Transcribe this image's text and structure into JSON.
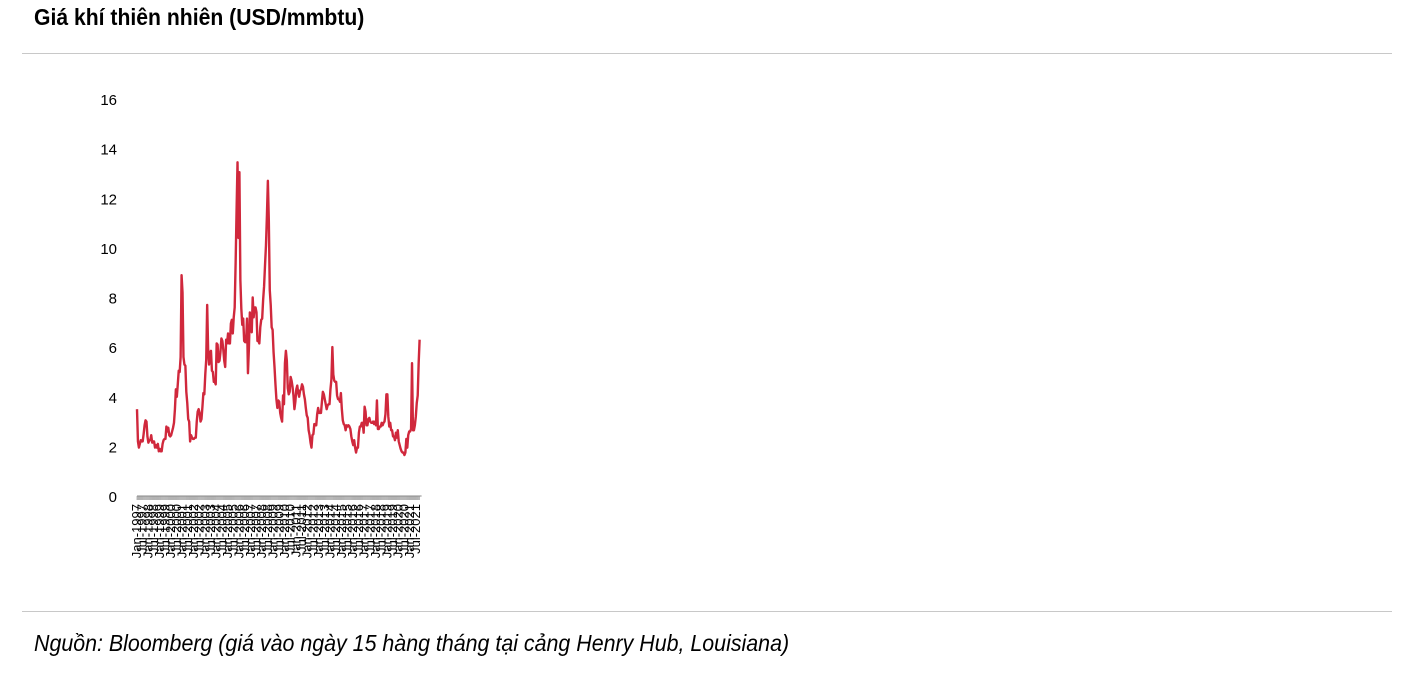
{
  "header": {
    "title": "Giá khí thiên nhiên (USD/mmbtu)"
  },
  "footer": {
    "source": "Nguồn: Bloomberg (giá vào ngày 15 hàng tháng tại cảng Henry Hub, Louisiana)"
  },
  "colors": {
    "line": "#d0283c",
    "axis": "#8a8a8a",
    "rule": "#c8c8c8"
  },
  "chart_data": {
    "type": "line",
    "title": "Giá khí thiên nhiên (USD/mmbtu)",
    "xlabel": "",
    "ylabel": "",
    "ylim": [
      0,
      16
    ],
    "yticks": [
      0,
      2,
      4,
      6,
      8,
      10,
      12,
      14,
      16
    ],
    "x_start": "Jan-1997",
    "frequency": "monthly",
    "xtick_labels": [
      "Jan-1997",
      "Jul-1997",
      "Jan-1998",
      "Jul-1998",
      "Jan-1999",
      "Jul-1999",
      "Jan-2000",
      "Jul-2000",
      "Jan-2001",
      "Jul-2001",
      "Jan-2002",
      "Jul-2002",
      "Jan-2003",
      "Jul-2003",
      "Jan-2004",
      "Jul-2004",
      "Jan-2005",
      "Jul-2005",
      "Jan-2006",
      "Jul-2006",
      "Jan-2007",
      "Jul-2007",
      "Jan-2008",
      "Jul-2008",
      "Jan-2009",
      "Jul-2009",
      "Jan-2010",
      "Jul-2010",
      "Jan-2011",
      "Jul-2011",
      "Jan-2012",
      "Jul-2012",
      "Jan-2013",
      "Jul-2013",
      "Jan-2014",
      "Jul-2014",
      "Jan-2015",
      "Jul-2015",
      "Jan-2016",
      "Jul-2016",
      "Jan-2017",
      "Jul-2017",
      "Jan-2018",
      "Jul-2018",
      "Jan-2019",
      "Jul-2019",
      "Jan-2020",
      "Jul-2020",
      "Jan-2021",
      "Jul-2021"
    ],
    "series": [
      {
        "name": "Henry Hub",
        "values": [
          3.5,
          2.2,
          1.95,
          2.1,
          2.25,
          2.2,
          2.2,
          2.5,
          2.85,
          3.05,
          3.0,
          2.4,
          2.15,
          2.25,
          2.25,
          2.45,
          2.15,
          2.2,
          2.2,
          1.95,
          2.05,
          1.95,
          2.1,
          1.8,
          1.9,
          1.8,
          1.8,
          2.1,
          2.25,
          2.3,
          2.3,
          2.8,
          2.6,
          2.75,
          2.45,
          2.4,
          2.45,
          2.6,
          2.75,
          2.95,
          3.5,
          4.3,
          4.0,
          4.5,
          5.05,
          5.0,
          5.6,
          8.9,
          8.2,
          5.6,
          5.3,
          5.25,
          4.2,
          3.75,
          3.1,
          3.0,
          2.2,
          2.45,
          2.35,
          2.3,
          2.3,
          2.35,
          2.35,
          3.0,
          3.4,
          3.5,
          3.35,
          3.0,
          3.1,
          3.6,
          4.15,
          4.1,
          4.9,
          5.5,
          7.7,
          5.9,
          5.3,
          5.8,
          5.85,
          5.05,
          5.0,
          4.6,
          4.6,
          4.5,
          6.15,
          6.1,
          5.4,
          5.45,
          5.8,
          6.35,
          6.25,
          5.9,
          5.45,
          5.2,
          6.3,
          6.15,
          6.55,
          6.15,
          6.15,
          6.95,
          7.1,
          6.55,
          7.2,
          7.6,
          9.4,
          11.5,
          13.45,
          10.4,
          13.05,
          8.7,
          7.55,
          6.9,
          7.15,
          6.25,
          6.2,
          6.2,
          7.15,
          4.95,
          5.95,
          7.4,
          6.8,
          6.6,
          8.0,
          7.2,
          7.6,
          7.6,
          7.4,
          6.25,
          6.25,
          6.15,
          6.8,
          7.1,
          7.15,
          7.9,
          8.45,
          9.3,
          10.1,
          11.3,
          12.7,
          11.1,
          8.3,
          7.7,
          6.8,
          6.7,
          5.8,
          5.2,
          4.5,
          3.9,
          3.55,
          3.85,
          3.8,
          3.35,
          3.15,
          3.0,
          4.05,
          3.7,
          5.35,
          5.85,
          5.45,
          4.35,
          4.1,
          4.2,
          4.8,
          4.65,
          4.4,
          4.05,
          3.5,
          3.8,
          4.3,
          4.45,
          4.15,
          4.0,
          4.25,
          4.3,
          4.5,
          4.4,
          4.1,
          3.9,
          3.55,
          3.25,
          3.15,
          2.65,
          2.45,
          2.15,
          1.95,
          2.45,
          2.5,
          2.9,
          2.85,
          2.85,
          3.3,
          3.55,
          3.35,
          3.35,
          3.35,
          3.8,
          4.2,
          4.1,
          3.9,
          3.7,
          3.5,
          3.65,
          3.7,
          3.7,
          4.3,
          4.7,
          6.0,
          4.9,
          4.65,
          4.6,
          4.6,
          4.05,
          3.9,
          3.9,
          3.8,
          4.15,
          3.5,
          3.05,
          2.9,
          2.85,
          2.65,
          2.85,
          2.8,
          2.85,
          2.8,
          2.7,
          2.4,
          2.2,
          2.05,
          2.25,
          1.95,
          1.75,
          1.95,
          1.95,
          2.55,
          2.8,
          2.8,
          2.95,
          2.95,
          2.55,
          3.6,
          3.4,
          2.85,
          2.85,
          3.1,
          3.15,
          3.0,
          2.95,
          2.95,
          3.0,
          2.9,
          3.0,
          2.85,
          3.85,
          2.7,
          2.7,
          2.8,
          2.8,
          2.95,
          2.85,
          2.95,
          3.0,
          3.3,
          4.1,
          4.1,
          3.2,
          2.8,
          2.95,
          2.65,
          2.65,
          2.4,
          2.4,
          2.25,
          2.55,
          2.35,
          2.65,
          2.2,
          2.05,
          1.9,
          1.8,
          1.75,
          1.75,
          1.65,
          1.75,
          2.3,
          1.95,
          2.45,
          2.6,
          2.6,
          2.7,
          5.35,
          2.65,
          2.65,
          2.85,
          3.2,
          3.75,
          4.05,
          5.35,
          6.3
        ]
      }
    ]
  }
}
